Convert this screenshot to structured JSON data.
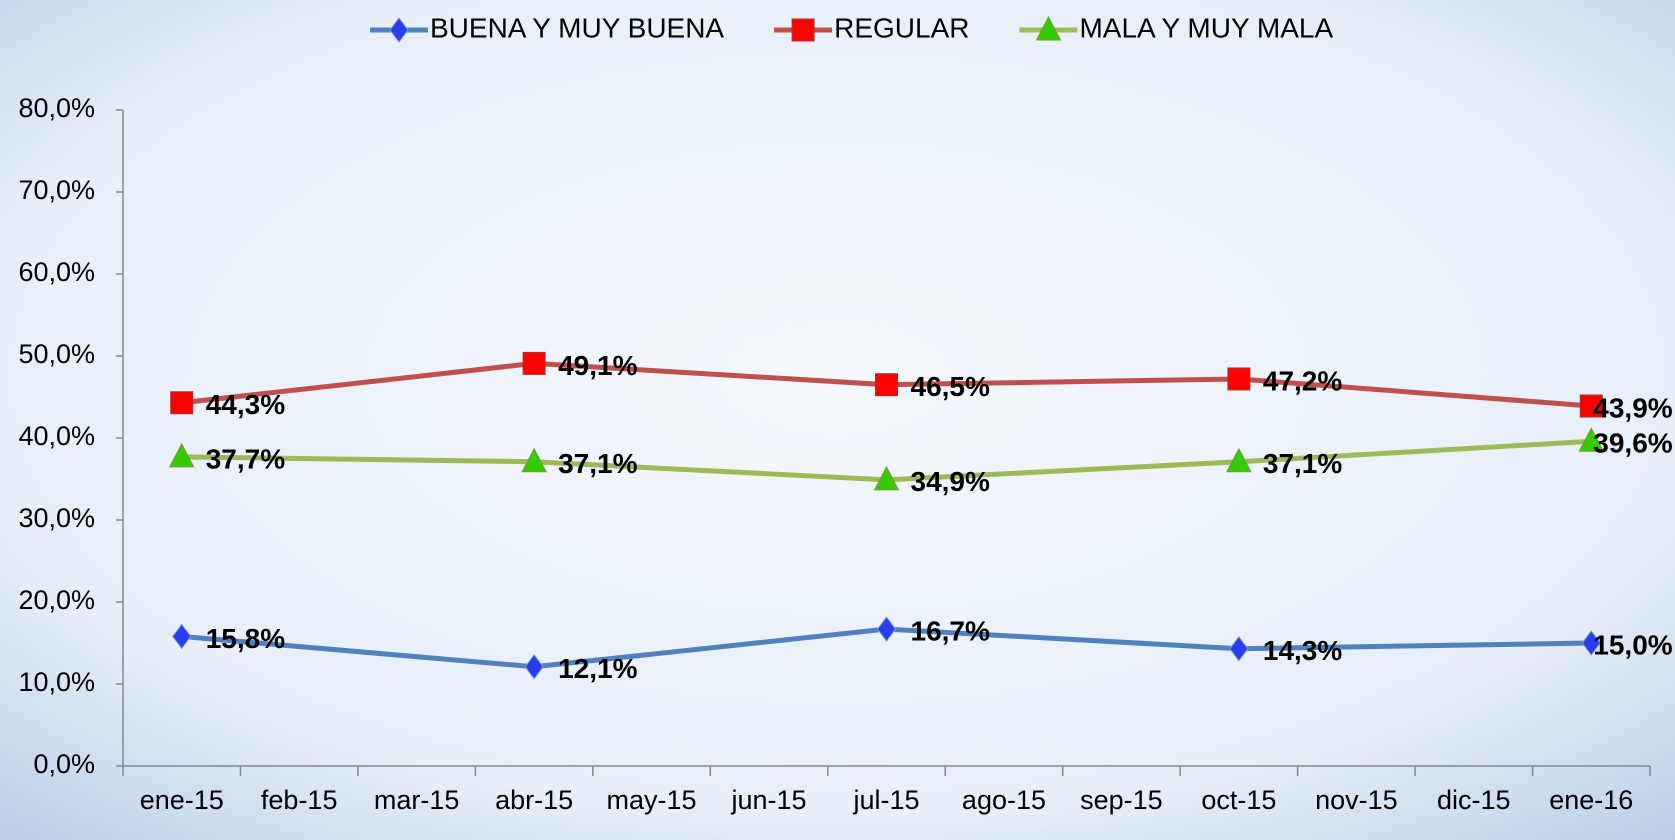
{
  "chart_data": {
    "type": "line",
    "categories": [
      "ene-15",
      "feb-15",
      "mar-15",
      "abr-15",
      "may-15",
      "jun-15",
      "jul-15",
      "ago-15",
      "sep-15",
      "oct-15",
      "nov-15",
      "dic-15",
      "ene-16"
    ],
    "series": [
      {
        "name": "BUENA Y MUY BUENA",
        "color": "#4f81bd",
        "marker_color": "#2a3cf0",
        "marker": "diamond",
        "values": [
          15.8,
          null,
          null,
          12.1,
          null,
          null,
          16.7,
          null,
          null,
          14.3,
          null,
          null,
          15.0
        ],
        "value_labels": [
          "15,8%",
          null,
          null,
          "12,1%",
          null,
          null,
          "16,7%",
          null,
          null,
          "14,3%",
          null,
          null,
          "15,0%"
        ]
      },
      {
        "name": "REGULAR",
        "color": "#c0504d",
        "marker_color": "#ff0000",
        "marker": "square",
        "values": [
          44.3,
          null,
          null,
          49.1,
          null,
          null,
          46.5,
          null,
          null,
          47.2,
          null,
          null,
          43.9
        ],
        "value_labels": [
          "44,3%",
          null,
          null,
          "49,1%",
          null,
          null,
          "46,5%",
          null,
          null,
          "47,2%",
          null,
          null,
          "43,9%"
        ]
      },
      {
        "name": "MALA Y MUY MALA",
        "color": "#9bbb59",
        "marker_color": "#33cc00",
        "marker": "triangle",
        "values": [
          37.7,
          null,
          null,
          37.1,
          null,
          null,
          34.9,
          null,
          null,
          37.1,
          null,
          null,
          39.6
        ],
        "value_labels": [
          "37,7%",
          null,
          null,
          "37,1%",
          null,
          null,
          "34,9%",
          null,
          null,
          "37,1%",
          null,
          null,
          "39,6%"
        ]
      }
    ],
    "ylim": [
      0,
      80
    ],
    "yticks": [
      {
        "value": 0,
        "label": "0,0%"
      },
      {
        "value": 10,
        "label": "10,0%"
      },
      {
        "value": 20,
        "label": "20,0%"
      },
      {
        "value": 30,
        "label": "30,0%"
      },
      {
        "value": 40,
        "label": "40,0%"
      },
      {
        "value": 50,
        "label": "50,0%"
      },
      {
        "value": 60,
        "label": "60,0%"
      },
      {
        "value": 70,
        "label": "70,0%"
      },
      {
        "value": 80,
        "label": "80,0%"
      }
    ],
    "grid": false,
    "legend": "top"
  }
}
